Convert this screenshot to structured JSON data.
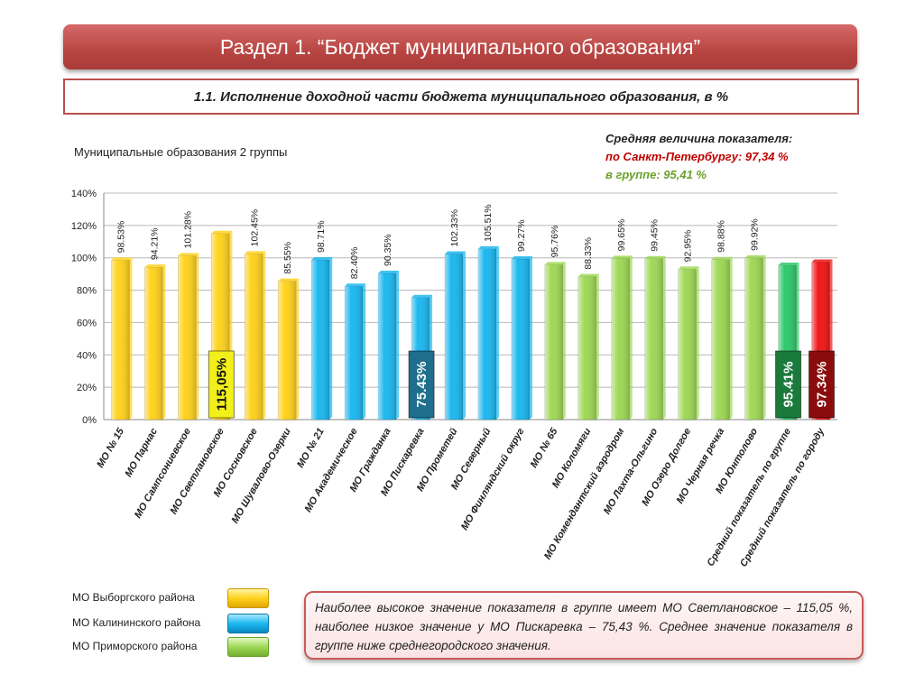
{
  "header": {
    "title": "Раздел 1. “Бюджет муниципального образования”",
    "subtitle": "1.1. Исполнение доходной части бюджета муниципального образования, в %"
  },
  "group_label": "Муниципальные образования 2 группы",
  "average_info": {
    "line1": "Средняя величина показателя:",
    "line2": "по Санкт-Петербургу: 97,34 %",
    "line3": "в группе:  95,41 %"
  },
  "chart_data": {
    "type": "bar",
    "categories": [
      "МО № 15",
      "МО Парнас",
      "МО Сампсониевское",
      "МО Светлановское",
      "МО Сосновское",
      "МО Шувалово-Озерки",
      "МО № 21",
      "МО Академическое",
      "МО Гражданка",
      "МО Пискаревка",
      "МО Прометей",
      "МО Северный",
      "МО Финляндский округ",
      "МО № 65",
      "МО Коломяги",
      "МО Комендантский аэродром",
      "МО Лахта-Ольгино",
      "МО Озеро Долгое",
      "МО Черная речка",
      "МО Юнтолово",
      "Средний показатель по группе",
      "Средний показатель по городу"
    ],
    "values": [
      98.53,
      94.21,
      101.28,
      115.05,
      102.45,
      85.55,
      98.71,
      82.4,
      90.35,
      75.43,
      102.33,
      105.51,
      99.27,
      95.76,
      88.33,
      99.65,
      99.45,
      92.95,
      98.88,
      99.92,
      95.41,
      97.34
    ],
    "data_labels": [
      "98.53%",
      "94.21%",
      "101.28%",
      "",
      "102.45%",
      "85.55%",
      "98.71%",
      "82.40%",
      "90.35%",
      "",
      "102.33%",
      "105.51%",
      "99.27%",
      "95.76%",
      "88.33%",
      "99.65%",
      "99.45%",
      "92.95%",
      "98.88%",
      "99.92%",
      "",
      ""
    ],
    "groups": [
      "vyborg",
      "vyborg",
      "vyborg",
      "vyborg",
      "vyborg",
      "vyborg",
      "kalinin",
      "kalinin",
      "kalinin",
      "kalinin",
      "kalinin",
      "kalinin",
      "kalinin",
      "primorsky",
      "primorsky",
      "primorsky",
      "primorsky",
      "primorsky",
      "primorsky",
      "primorsky",
      "group_avg",
      "city_avg"
    ],
    "colors": {
      "vyborg": "#ffd21e",
      "kalinin": "#1cb8f0",
      "primorsky": "#9fd856",
      "group_avg": "#2fc96a",
      "city_avg": "#f01818"
    },
    "highlights": [
      {
        "index": 3,
        "label": "115,05%",
        "bg": "#f2ef1a",
        "color": "#111111"
      },
      {
        "index": 9,
        "label": "75.43%",
        "bg": "#1e6e8c",
        "color": "#ffffff"
      },
      {
        "index": 20,
        "label": "95.41%",
        "bg": "#1a7a3c",
        "color": "#ffffff"
      },
      {
        "index": 21,
        "label": "97.34%",
        "bg": "#8b0c0c",
        "color": "#ffffff"
      }
    ],
    "yticks": [
      "0%",
      "20%",
      "40%",
      "60%",
      "80%",
      "100%",
      "120%",
      "140%"
    ],
    "ylim": [
      0,
      140
    ],
    "grid": true
  },
  "legend": [
    {
      "label": "МО Выборгского района",
      "color": "#ffd21e"
    },
    {
      "label": "МО Калининского района",
      "color": "#1cb8f0"
    },
    {
      "label": "МО Приморского района",
      "color": "#9fd856"
    }
  ],
  "note": "Наиболее высокое значение показателя в группе имеет МО Светлановское – 115,05 %, наиболее низкое значение у МО Пискаревка – 75,43 %. Среднее значение показателя в группе ниже среднегородского значения."
}
